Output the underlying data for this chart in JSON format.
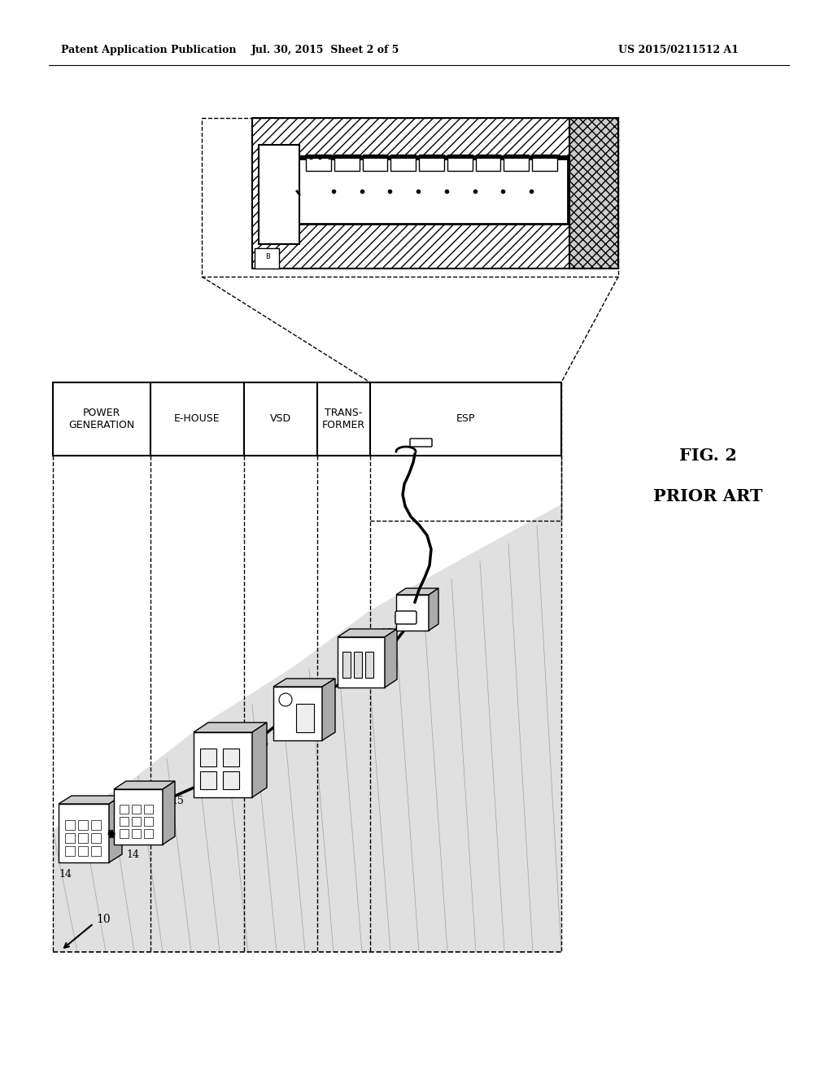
{
  "title_left": "Patent Application Publication",
  "title_mid": "Jul. 30, 2015  Sheet 2 of 5",
  "title_right": "US 2015/0211512 A1",
  "fig_label": "FIG. 2",
  "fig_sublabel": "PRIOR ART",
  "background_color": "#ffffff"
}
